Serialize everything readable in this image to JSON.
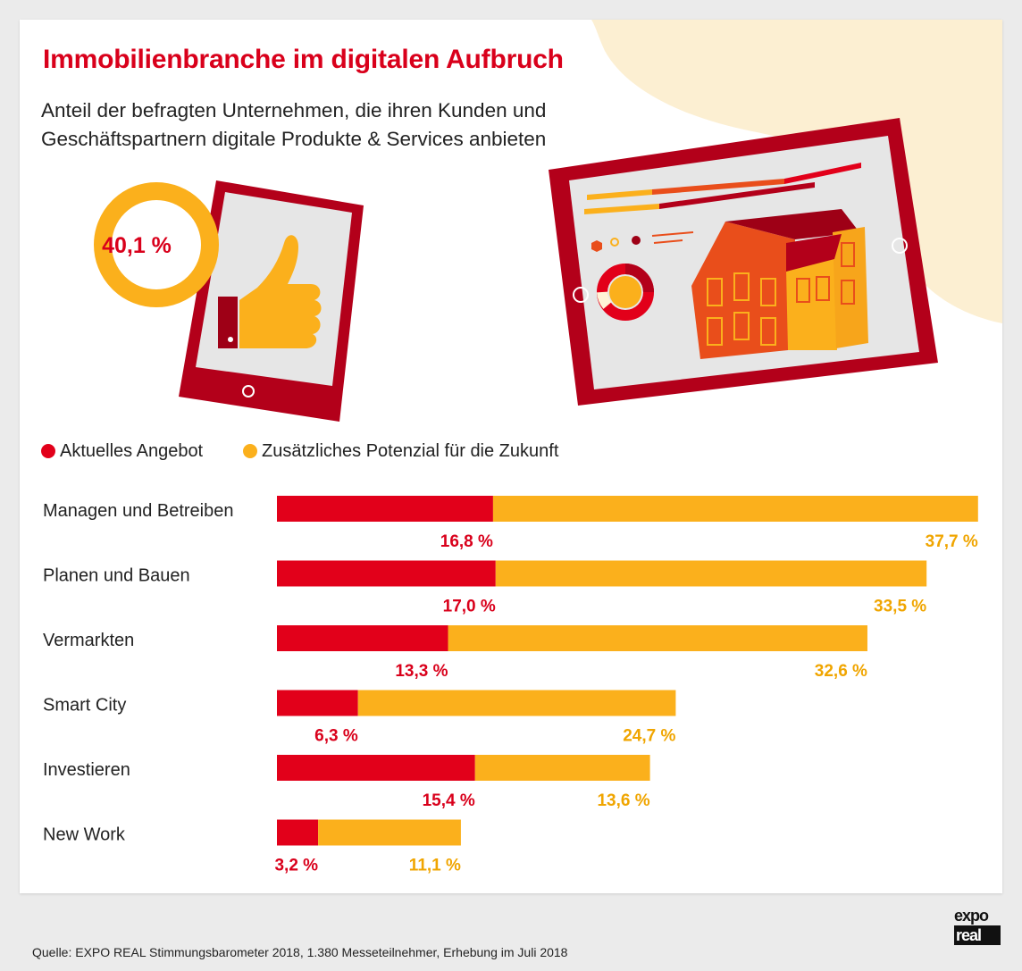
{
  "header": {
    "title": "Immobilienbranche im digitalen Aufbruch",
    "subtitle": "Anteil der befragten Unternehmen, die ihren Kunden und Geschäftspartnern digitale Produkte & Services anbieten"
  },
  "highlight": {
    "value_label": "40,1 %",
    "value": 40.1
  },
  "legend": [
    {
      "label": "Aktuelles Angebot",
      "color": "#e2001a"
    },
    {
      "label": "Zusätzliches Potenzial für die Zukunft",
      "color": "#fbb01c"
    }
  ],
  "chart_data": {
    "type": "bar",
    "orientation": "horizontal",
    "stacked": true,
    "categories": [
      "Managen und Betreiben",
      "Planen und Bauen",
      "Vermarkten",
      "Smart City",
      "Investieren",
      "New Work"
    ],
    "series": [
      {
        "name": "Aktuelles Angebot",
        "color": "#e2001a",
        "values": [
          16.8,
          17.0,
          13.3,
          6.3,
          15.4,
          3.2
        ],
        "labels": [
          "16,8 %",
          "17,0 %",
          "13,3 %",
          "6,3 %",
          "15,4 %",
          "3,2 %"
        ]
      },
      {
        "name": "Zusätzliches Potenzial für die Zukunft",
        "color": "#fbb01c",
        "values": [
          37.7,
          33.5,
          32.6,
          24.7,
          13.6,
          11.1
        ],
        "labels": [
          "37,7 %",
          "33,5 %",
          "32,6 %",
          "24,7 %",
          "13,6 %",
          "11,1 %"
        ]
      }
    ],
    "label_colors": {
      "current": "#d9001b",
      "potential": "#f0a500"
    },
    "grid": false,
    "legend_position": "top-left"
  },
  "footer": {
    "source": "Quelle: EXPO REAL Stimmungsbarometer 2018, 1.380 Messeteilnehmer, Erhebung im Juli 2018"
  },
  "logo": {
    "line1": "expo",
    "line2": "real"
  }
}
